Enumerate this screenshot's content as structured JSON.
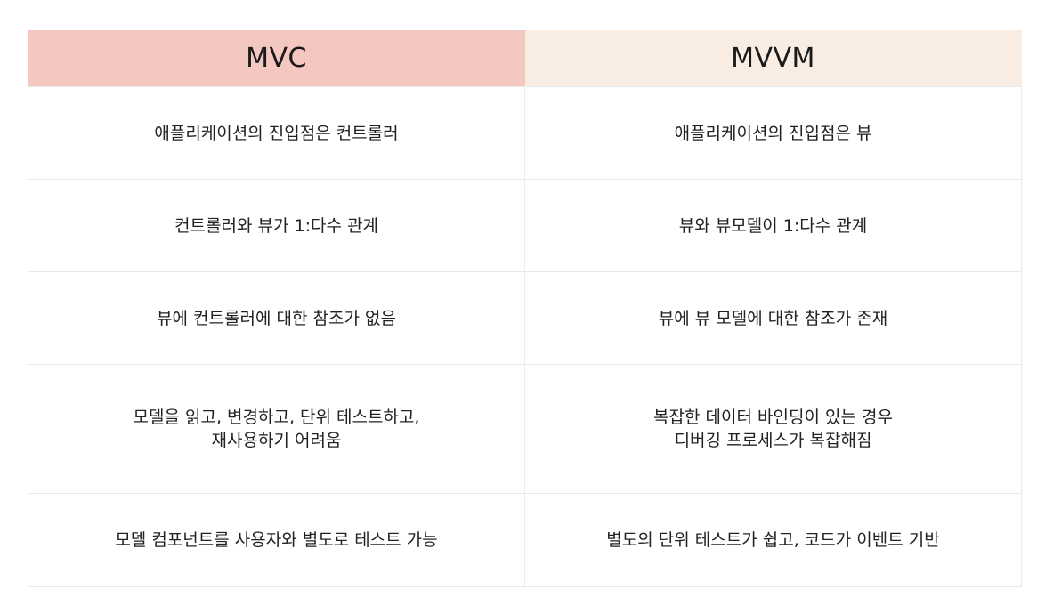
{
  "table": {
    "headers": {
      "left": "MVC",
      "right": "MVVM"
    },
    "colors": {
      "left_header_bg": "#f4c7c1",
      "right_header_bg": "#f8ece3"
    },
    "rows": [
      {
        "mvc": [
          "애플리케이션의 진입점은 컨트롤러"
        ],
        "mvvm": [
          "애플리케이션의 진입점은 뷰"
        ]
      },
      {
        "mvc": [
          "컨트롤러와 뷰가 1:다수 관계"
        ],
        "mvvm": [
          "뷰와 뷰모델이 1:다수 관계"
        ]
      },
      {
        "mvc": [
          "뷰에 컨트롤러에 대한 참조가 없음"
        ],
        "mvvm": [
          "뷰에 뷰 모델에 대한 참조가 존재"
        ]
      },
      {
        "mvc": [
          "모델을 읽고, 변경하고, 단위 테스트하고,",
          "재사용하기 어려움"
        ],
        "mvvm": [
          "복잡한 데이터 바인딩이 있는 경우",
          "디버깅 프로세스가 복잡해짐"
        ]
      },
      {
        "mvc": [
          "모델 컴포넌트를 사용자와 별도로 테스트 가능"
        ],
        "mvvm": [
          "별도의 단위 테스트가 쉽고, 코드가 이벤트 기반"
        ]
      }
    ]
  }
}
